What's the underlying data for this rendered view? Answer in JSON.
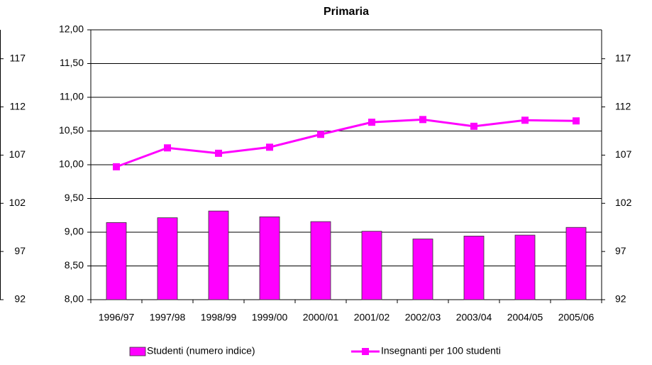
{
  "chart_data": {
    "type": "bar",
    "title": "Primaria",
    "categories": [
      "1996/97",
      "1997/98",
      "1998/99",
      "1999/00",
      "2000/01",
      "2001/02",
      "2002/03",
      "2003/04",
      "2004/05",
      "2005/06"
    ],
    "series": [
      {
        "name": "Studenti (numero indice)",
        "type": "bar",
        "axis": "y2",
        "color": "#ff00ff",
        "values": [
          100.0,
          100.5,
          101.2,
          100.6,
          100.1,
          99.1,
          98.3,
          98.6,
          98.7,
          99.5
        ]
      },
      {
        "name": "Insegnanti per 100 studenti",
        "type": "line",
        "color": "#ff00ff",
        "values": [
          9.97,
          10.25,
          10.17,
          10.26,
          10.45,
          10.63,
          10.67,
          10.57,
          10.66,
          10.65
        ]
      }
    ],
    "ylim": [
      8,
      12
    ],
    "yticks": [
      {
        "value": 8,
        "label": "8,00"
      },
      {
        "value": 8.5,
        "label": "8,50"
      },
      {
        "value": 9,
        "label": "9,00"
      },
      {
        "value": 9.5,
        "label": "9,50"
      },
      {
        "value": 10,
        "label": "10,00"
      },
      {
        "value": 10.5,
        "label": "10,50"
      },
      {
        "value": 11,
        "label": "11,00"
      },
      {
        "value": 11.5,
        "label": "11,50"
      },
      {
        "value": 12,
        "label": "12,00"
      }
    ],
    "y2lim": [
      92,
      120
    ],
    "y2ticks": [
      92,
      97,
      102,
      107,
      112,
      117
    ],
    "grid": true,
    "legend": "bottom"
  }
}
